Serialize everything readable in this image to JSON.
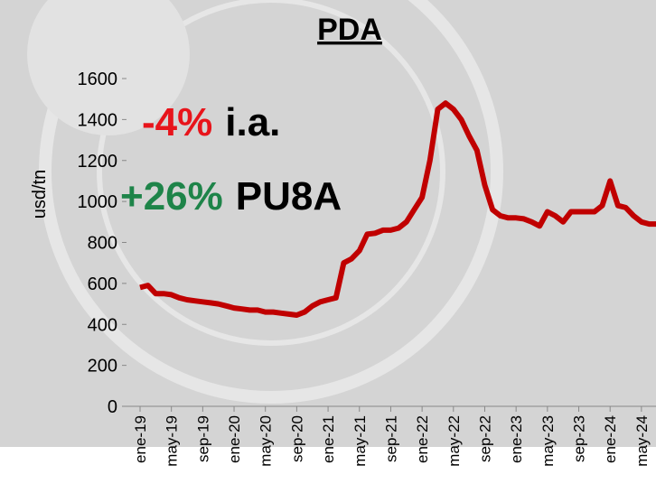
{
  "chart_data": {
    "type": "line",
    "title": "PDA",
    "y_label": "usd/tn",
    "annotations": [
      {
        "parts": [
          {
            "text": "-4%",
            "color": "#e8141b"
          },
          {
            "text": "i.a.",
            "color": "#000000"
          }
        ]
      },
      {
        "parts": [
          {
            "text": "+26%",
            "color": "#1e8449"
          },
          {
            "text": "PU8A",
            "color": "#000000"
          }
        ]
      }
    ],
    "categories": [
      "ene-19",
      null,
      null,
      null,
      "may-19",
      null,
      null,
      null,
      "sep-19",
      null,
      null,
      null,
      "ene-20",
      null,
      null,
      null,
      "may-20",
      null,
      null,
      null,
      "sep-20",
      null,
      null,
      null,
      "ene-21",
      null,
      null,
      null,
      "may-21",
      null,
      null,
      null,
      "sep-21",
      null,
      null,
      null,
      "ene-22",
      null,
      null,
      null,
      "may-22",
      null,
      null,
      null,
      "sep-22",
      null,
      null,
      null,
      "ene-23",
      null,
      null,
      null,
      "may-23",
      null,
      null,
      null,
      "sep-23",
      null,
      null,
      null,
      "ene-24",
      null,
      null,
      null,
      "may-24",
      null,
      null
    ],
    "series": [
      {
        "name": "PDA",
        "color": "#c00000",
        "values": [
          580,
          590,
          550,
          550,
          545,
          530,
          520,
          515,
          510,
          505,
          500,
          490,
          480,
          475,
          470,
          470,
          460,
          460,
          455,
          450,
          445,
          460,
          490,
          510,
          520,
          530,
          700,
          720,
          760,
          840,
          845,
          860,
          860,
          870,
          900,
          960,
          1020,
          1200,
          1450,
          1480,
          1450,
          1400,
          1320,
          1250,
          1080,
          960,
          930,
          920,
          920,
          915,
          900,
          880,
          950,
          930,
          900,
          950,
          950,
          950,
          950,
          980,
          1100,
          980,
          970,
          930,
          900,
          890,
          890
        ]
      }
    ],
    "ylim": [
      0,
      1600
    ],
    "yticks": [
      0,
      200,
      400,
      600,
      800,
      1000,
      1200,
      1400,
      1600
    ],
    "grid": false
  }
}
